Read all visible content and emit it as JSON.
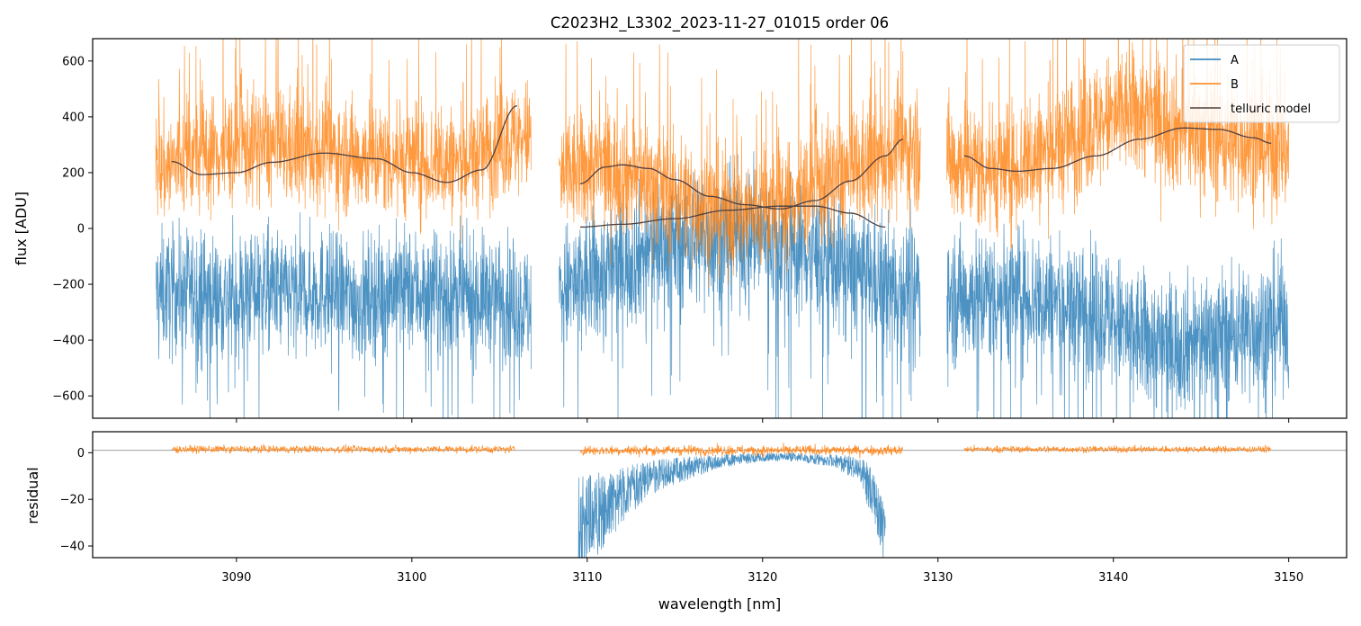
{
  "chart_data": [
    {
      "type": "line",
      "title": "C2023H2_L3302_2023-11-27_01015  order 06",
      "xlabel": "",
      "ylabel": "flux [ADU]",
      "xlim": [
        3081.8,
        3153.3
      ],
      "ylim": [
        -680,
        680
      ],
      "yticks": [
        -600,
        -400,
        -200,
        0,
        200,
        400,
        600
      ],
      "xticks": [
        3090,
        3100,
        3110,
        3120,
        3130,
        3140,
        3150
      ],
      "colors": {
        "A": "#1f77b4",
        "B": "#ff7f0e",
        "telluric": "#4d4040"
      },
      "legend": {
        "position": "top-right",
        "entries": [
          "A",
          "B",
          "telluric model"
        ]
      },
      "segments": [
        {
          "x_range": [
            3085.4,
            3106.8
          ],
          "A_mean": [
            -230,
            -220,
            -250,
            -210,
            -240,
            -220,
            -260,
            -210,
            -230,
            -250,
            -240,
            -290
          ],
          "A_amp": 200,
          "B_mean": [
            200,
            260,
            280,
            300,
            280,
            270,
            260,
            250,
            240,
            230,
            300,
            330
          ],
          "B_amp": 190
        },
        {
          "x_range": [
            3108.4,
            3129.0
          ],
          "A_mean": [
            -230,
            -180,
            -120,
            -60,
            -40,
            -30,
            -20,
            -60,
            -100,
            -150,
            -200,
            -220
          ],
          "A_amp": 220,
          "B_mean": [
            180,
            220,
            200,
            150,
            100,
            60,
            60,
            100,
            160,
            200,
            260,
            300
          ],
          "B_amp": 200
        },
        {
          "x_range": [
            3130.5,
            3150.0
          ],
          "A_mean": [
            -250,
            -240,
            -230,
            -250,
            -280,
            -300,
            -380,
            -420,
            -400,
            -380,
            -350,
            -320
          ],
          "A_amp": 220,
          "B_mean": [
            250,
            220,
            210,
            260,
            320,
            380,
            420,
            380,
            340,
            320,
            300,
            280
          ],
          "B_amp": 210
        }
      ],
      "telluric_model": [
        {
          "x": [
            3086.3,
            3088.0,
            3090.0,
            3092.0,
            3095.0,
            3098.0,
            3100.0,
            3102.0,
            3104.0,
            3106.0
          ],
          "y": [
            240,
            193,
            200,
            237,
            270,
            250,
            200,
            165,
            210,
            440
          ]
        },
        {
          "x": [
            3109.6,
            3111.0,
            3112.0,
            3113.5,
            3115.0,
            3117.0,
            3119.0,
            3121.0,
            3123.0,
            3125.0,
            3127.0,
            3128.0
          ],
          "y": [
            160,
            220,
            228,
            215,
            175,
            115,
            85,
            70,
            100,
            170,
            260,
            320
          ]
        },
        {
          "x": [
            3109.6,
            3112.0,
            3115.0,
            3118.0,
            3121.0,
            3123.0,
            3125.0,
            3127.0
          ],
          "y": [
            5,
            15,
            35,
            65,
            80,
            80,
            55,
            5
          ]
        },
        {
          "x": [
            3131.5,
            3133.0,
            3134.5,
            3136.5,
            3139.0,
            3141.5,
            3144.0,
            3146.0,
            3148.0,
            3149.0
          ],
          "y": [
            260,
            215,
            205,
            215,
            260,
            320,
            360,
            355,
            325,
            305
          ]
        }
      ]
    },
    {
      "type": "line",
      "title": "",
      "xlabel": "wavelength [nm]",
      "ylabel": "residual",
      "xlim": [
        3081.8,
        3153.3
      ],
      "ylim": [
        -45,
        9
      ],
      "yticks": [
        -40,
        -20,
        0
      ],
      "xticks": [
        3090,
        3100,
        3110,
        3120,
        3130,
        3140,
        3150
      ],
      "xtick_labels": [
        "3090",
        "3100",
        "3110",
        "3120",
        "3130",
        "3140",
        "3150"
      ],
      "reference_line_y": 1,
      "segments": [
        {
          "x_range": [
            3086.3,
            3105.9
          ],
          "B_level": 1.5,
          "B_noise": 1.6
        },
        {
          "x_range": [
            3109.6,
            3128.0
          ],
          "B_level": 1.0,
          "B_noise": 2.2
        },
        {
          "x_range": [
            3131.5,
            3149.0
          ],
          "B_level": 1.5,
          "B_noise": 1.4
        }
      ],
      "A_residual": {
        "x_range": [
          3109.5,
          3127.0
        ],
        "envelope_x": [
          3109.5,
          3110.5,
          3112.0,
          3114.0,
          3116.0,
          3118.0,
          3120.0,
          3122.0,
          3124.0,
          3125.5,
          3126.5,
          3127.0
        ],
        "envelope_y": [
          -45,
          -38,
          -25,
          -14,
          -9,
          -5,
          -3,
          -3,
          -5,
          -10,
          -28,
          -45
        ]
      }
    }
  ]
}
